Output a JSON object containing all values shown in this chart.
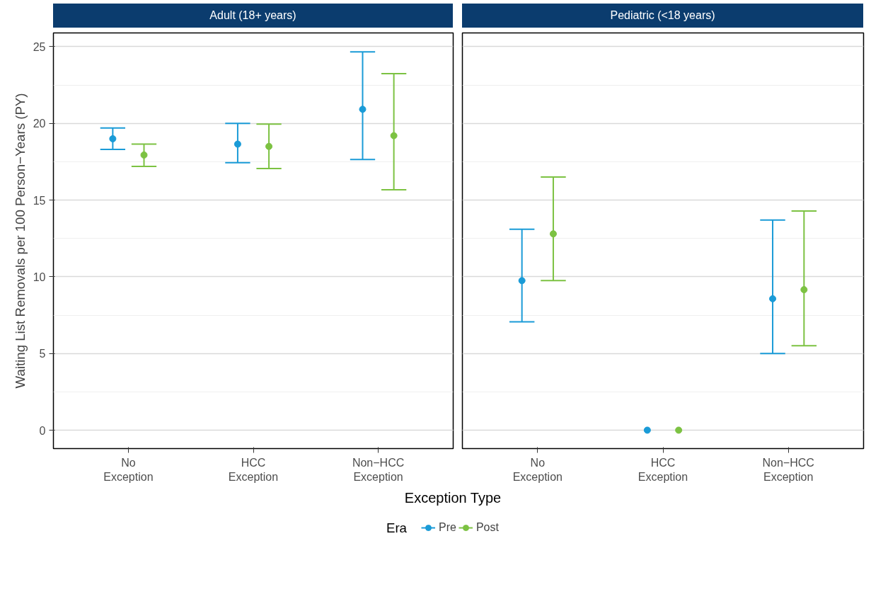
{
  "chart_data": [
    {
      "type": "scatter",
      "title": "Adult (18+ years)",
      "xlabel": "Exception Type",
      "ylabel": "Waiting List Removals per 100 Person−Years (PY)",
      "legend_title": "Era",
      "legend": "bottom",
      "categories": [
        "No Exception",
        "HCC Exception",
        "Non−HCC Exception"
      ],
      "series": [
        {
          "name": "Pre",
          "color": "#1a9bd7",
          "values": [
            19.0,
            18.65,
            20.92
          ],
          "errors": [
            [
              18.3,
              19.7
            ],
            [
              17.44,
              20.0
            ],
            [
              17.65,
              24.66
            ]
          ]
        },
        {
          "name": "Post",
          "color": "#7cc242",
          "values": [
            17.94,
            18.5,
            19.2
          ],
          "errors": [
            [
              17.2,
              18.65
            ],
            [
              17.06,
              19.96
            ],
            [
              15.67,
              23.24
            ]
          ]
        }
      ],
      "ylim": [
        -1.2,
        25.9
      ],
      "yticks": [
        0,
        5,
        10,
        15,
        20,
        25
      ],
      "grid": true,
      "marker": "circle"
    },
    {
      "type": "scatter",
      "title": "Pediatric (<18 years)",
      "categories": [
        "No Exception",
        "HCC Exception",
        "Non−HCC Exception"
      ],
      "series": [
        {
          "color": "#1a9bd7",
          "values": [
            9.75,
            0,
            8.57
          ],
          "errors": [
            [
              7.06,
              13.1
            ],
            null,
            [
              5.0,
              13.7
            ]
          ]
        },
        {
          "color": "#7cc242",
          "values": [
            12.8,
            0,
            9.16
          ],
          "errors": [
            [
              9.75,
              16.5
            ],
            null,
            [
              5.5,
              14.29
            ]
          ]
        }
      ],
      "ylim": [
        -1.2,
        25.9
      ],
      "yticks": [
        0,
        5,
        10,
        15,
        20,
        25
      ],
      "grid": true,
      "marker": "circle",
      "tick_labels": "x"
    }
  ]
}
